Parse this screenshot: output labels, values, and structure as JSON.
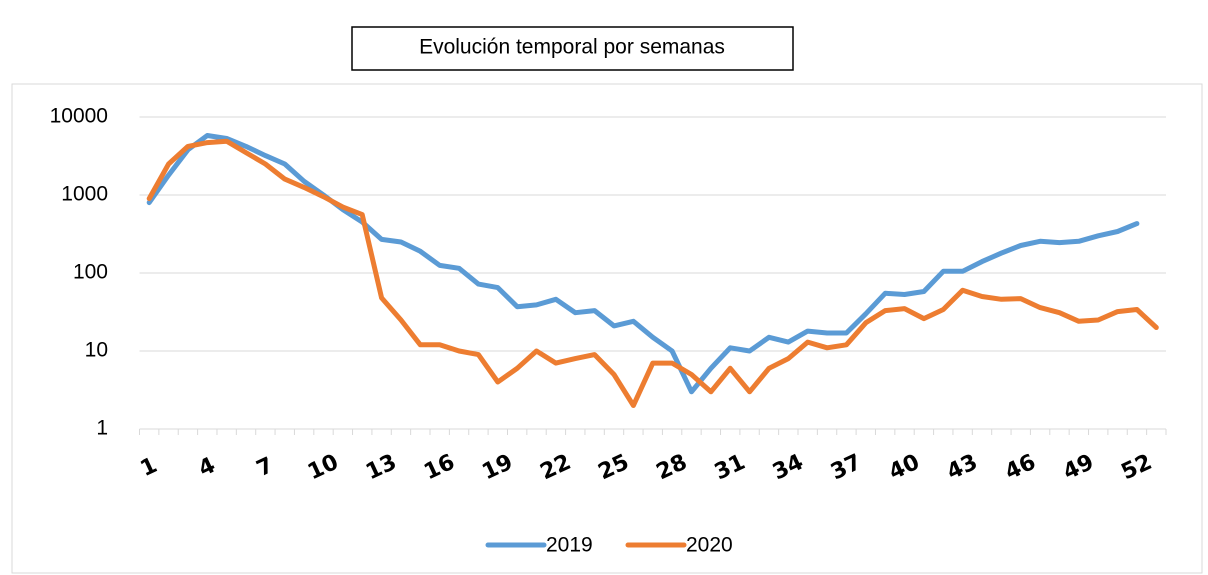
{
  "chart_data": {
    "type": "line",
    "title": "Evolución temporal por semanas",
    "categories": [
      1,
      null,
      null,
      4,
      null,
      null,
      7,
      null,
      null,
      10,
      null,
      null,
      13,
      null,
      null,
      16,
      null,
      null,
      19,
      null,
      null,
      22,
      null,
      null,
      25,
      null,
      null,
      28,
      null,
      null,
      31,
      null,
      null,
      34,
      null,
      null,
      37,
      null,
      null,
      40,
      null,
      null,
      43,
      null,
      null,
      46,
      null,
      null,
      49,
      null,
      null,
      52,
      null
    ],
    "series": [
      {
        "name": "2019",
        "color": "#5b9bd5",
        "values": [
          800,
          1800,
          3800,
          5800,
          5300,
          4200,
          3200,
          2500,
          1500,
          1000,
          650,
          450,
          270,
          250,
          190,
          125,
          115,
          72,
          65,
          37,
          39,
          46,
          31,
          33,
          21,
          24,
          15,
          10,
          3,
          6,
          11,
          10,
          15,
          13,
          18,
          17,
          17,
          30,
          55,
          53,
          58,
          105,
          105,
          140,
          180,
          225,
          255,
          245,
          255,
          300,
          340,
          430,
          null
        ]
      },
      {
        "name": "2020",
        "color": "#ed7d31",
        "values": [
          900,
          2500,
          4200,
          4700,
          4900,
          3500,
          2500,
          1600,
          1250,
          950,
          700,
          560,
          48,
          25,
          12,
          12,
          10,
          9,
          4,
          6,
          10,
          7,
          8,
          9,
          5,
          2,
          7,
          7,
          5,
          3,
          6,
          3,
          6,
          8,
          13,
          11,
          12,
          23,
          33,
          35,
          26,
          34,
          60,
          50,
          46,
          47,
          36,
          31,
          24,
          25,
          32,
          34,
          20
        ]
      }
    ],
    "ylim": [
      1,
      10000
    ],
    "yticks": [
      1,
      10,
      100,
      1000,
      10000
    ],
    "log_y": true,
    "grid": true,
    "legend": "bottom"
  }
}
